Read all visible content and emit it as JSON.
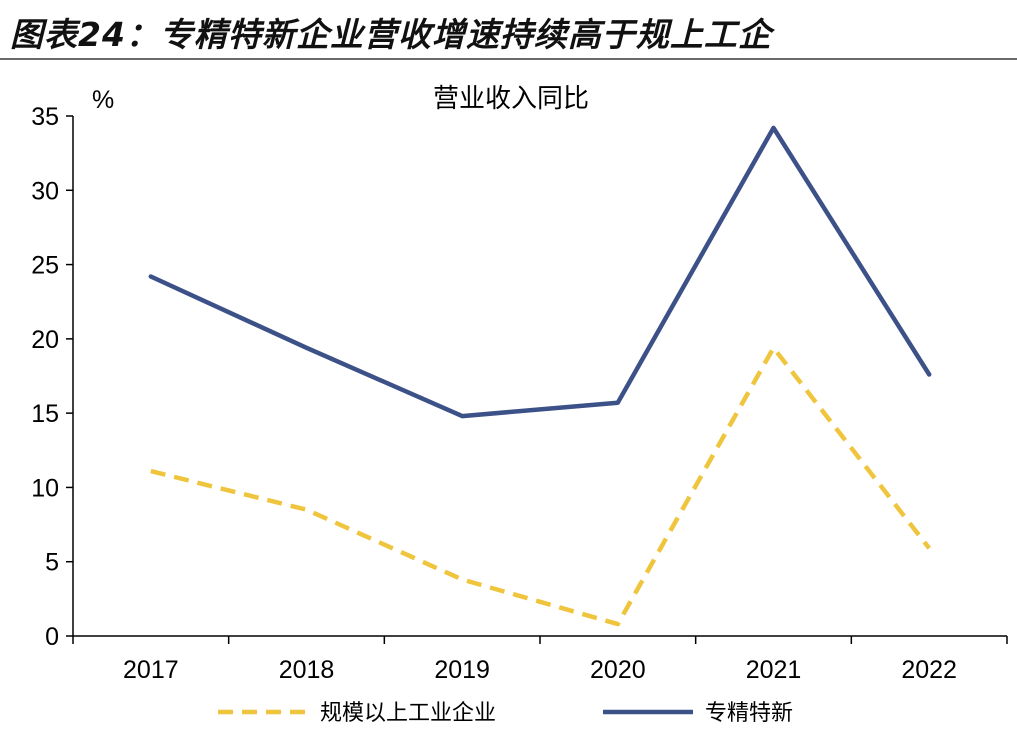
{
  "figure": {
    "caption": "图表24：专精特新企业营收增速持续高于规上工企"
  },
  "chart_data": {
    "type": "line",
    "title": "营业收入同比",
    "ylabel": "%",
    "xlabel": "",
    "categories": [
      "2017",
      "2018",
      "2019",
      "2020",
      "2021",
      "2022"
    ],
    "ylim": [
      0,
      35
    ],
    "yticks": [
      0,
      5,
      10,
      15,
      20,
      25,
      30,
      35
    ],
    "grid": false,
    "legend_position": "bottom",
    "series": [
      {
        "name": "规模以上工业企业",
        "values": [
          11.1,
          8.5,
          3.8,
          0.8,
          19.4,
          5.9
        ],
        "color": "#f0c53e",
        "style": "dashed"
      },
      {
        "name": "专精特新",
        "values": [
          24.2,
          19.4,
          14.8,
          15.7,
          34.2,
          17.6
        ],
        "color": "#3d5189",
        "style": "solid"
      }
    ]
  }
}
